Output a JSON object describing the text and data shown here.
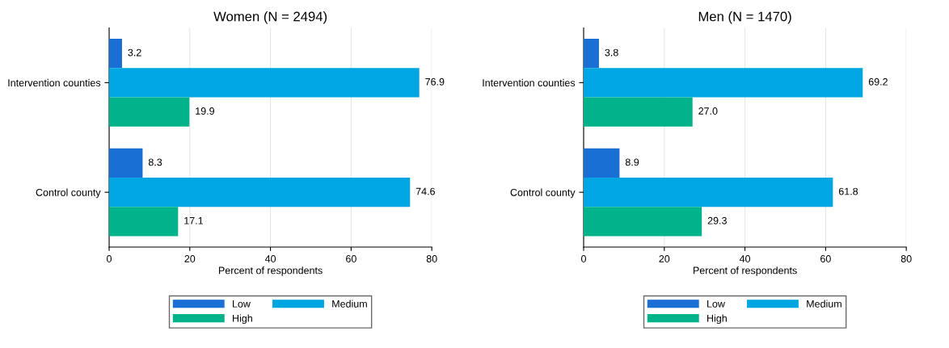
{
  "chart_data": [
    {
      "type": "bar",
      "orientation": "horizontal",
      "title": "Women (N = 2494)",
      "xlabel": "Percent of respondents",
      "categories": [
        "Intervention counties",
        "Control county"
      ],
      "xlim": [
        0,
        80
      ],
      "xticks": [
        0,
        20,
        40,
        60,
        80
      ],
      "grid": "x",
      "legend": "bottom",
      "series": [
        {
          "name": "Low",
          "color": "#1a6fd4",
          "values": [
            3.2,
            8.3
          ],
          "value_labels": [
            "3.2",
            "8.3"
          ]
        },
        {
          "name": "Medium",
          "color": "#00a6e2",
          "values": [
            76.9,
            74.6
          ],
          "value_labels": [
            "76.9",
            "74.6"
          ]
        },
        {
          "name": "High",
          "color": "#00b38b",
          "values": [
            19.9,
            17.1
          ],
          "value_labels": [
            "19.9",
            "17.1"
          ]
        }
      ]
    },
    {
      "type": "bar",
      "orientation": "horizontal",
      "title": "Men (N = 1470)",
      "xlabel": "Percent of respondents",
      "categories": [
        "Intervention counties",
        "Control county"
      ],
      "xlim": [
        0,
        80
      ],
      "xticks": [
        0,
        20,
        40,
        60,
        80
      ],
      "grid": "x",
      "legend": "bottom",
      "series": [
        {
          "name": "Low",
          "color": "#1a6fd4",
          "values": [
            3.8,
            8.9
          ],
          "value_labels": [
            "3.8",
            "8.9"
          ]
        },
        {
          "name": "Medium",
          "color": "#00a6e2",
          "values": [
            69.2,
            61.8
          ],
          "value_labels": [
            "69.2",
            "61.8"
          ]
        },
        {
          "name": "High",
          "color": "#00b38b",
          "values": [
            27.0,
            29.3
          ],
          "value_labels": [
            "27.0",
            "29.3"
          ]
        }
      ]
    }
  ]
}
